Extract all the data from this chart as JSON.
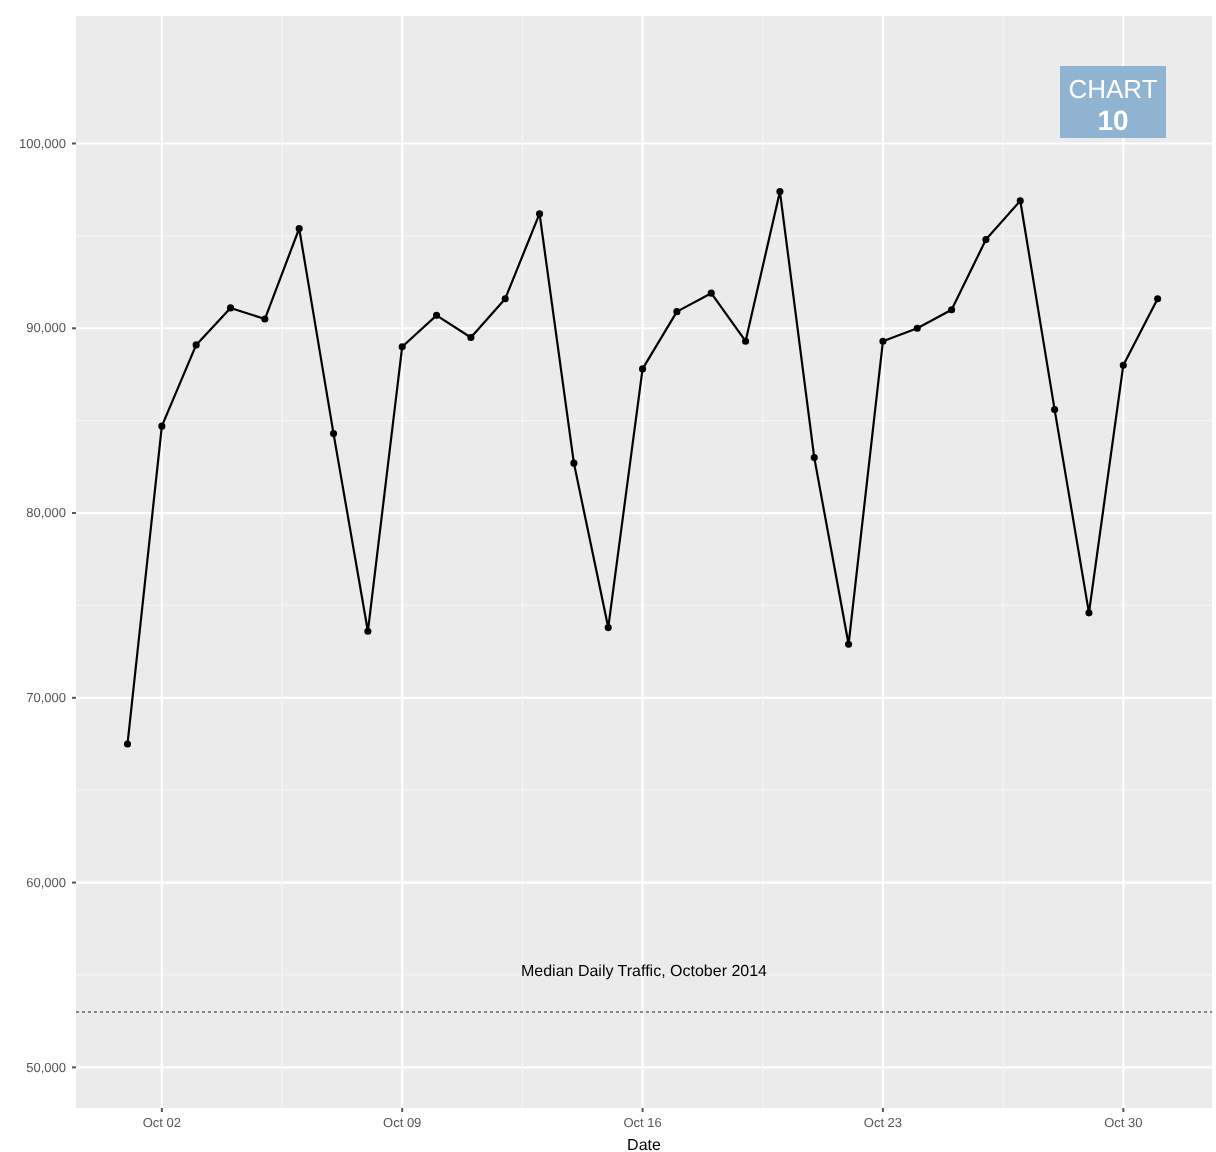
{
  "chart_data": {
    "type": "line",
    "xlabel": "Date",
    "annotations": [
      "CHART 10"
    ],
    "x": [
      "2014-10-01",
      "2014-10-02",
      "2014-10-03",
      "2014-10-04",
      "2014-10-05",
      "2014-10-06",
      "2014-10-07",
      "2014-10-08",
      "2014-10-09",
      "2014-10-10",
      "2014-10-11",
      "2014-10-12",
      "2014-10-13",
      "2014-10-14",
      "2014-10-15",
      "2014-10-16",
      "2014-10-17",
      "2014-10-18",
      "2014-10-19",
      "2014-10-20",
      "2014-10-21",
      "2014-10-22",
      "2014-10-23",
      "2014-10-24",
      "2014-10-25",
      "2014-10-26",
      "2014-10-27",
      "2014-10-28",
      "2014-10-29",
      "2014-10-30",
      "2014-10-31"
    ],
    "series": [
      {
        "color": "#000000",
        "values": [
          67500,
          84700,
          89100,
          91100,
          90500,
          95400,
          84300,
          73600,
          89000,
          90700,
          89500,
          91600,
          96200,
          82700,
          73800,
          87800,
          90900,
          91900,
          89300,
          97400,
          83000,
          72900,
          89300,
          90000,
          91000,
          94800,
          96900,
          85600,
          74600,
          88000,
          91600
        ]
      }
    ],
    "xlim": [
      "2014-09-29T12:00",
      "2014-11-01T14:00"
    ],
    "xticks": [
      {
        "value": "2014-10-02",
        "label": "Oct 02"
      },
      {
        "value": "2014-10-09",
        "label": "Oct 09"
      },
      {
        "value": "2014-10-16",
        "label": "Oct 16"
      },
      {
        "value": "2014-10-23",
        "label": "Oct 23"
      },
      {
        "value": "2014-10-30",
        "label": "Oct 30"
      }
    ],
    "ylim": [
      47800,
      106900
    ],
    "yticks": [
      {
        "value": 50000,
        "label": "50,000"
      },
      {
        "value": 60000,
        "label": "60,000"
      },
      {
        "value": 70000,
        "label": "70,000"
      },
      {
        "value": 80000,
        "label": "80,000"
      },
      {
        "value": 90000,
        "label": "90,000"
      },
      {
        "value": 100000,
        "label": "100,000"
      }
    ],
    "ref_lines": [
      {
        "axis": "y",
        "value": 53000,
        "label": "Median Daily Traffic, October 2014",
        "color": "#888888",
        "line_style": "dotted"
      }
    ],
    "grid": true,
    "marker": "circle",
    "line_style": "solid"
  }
}
